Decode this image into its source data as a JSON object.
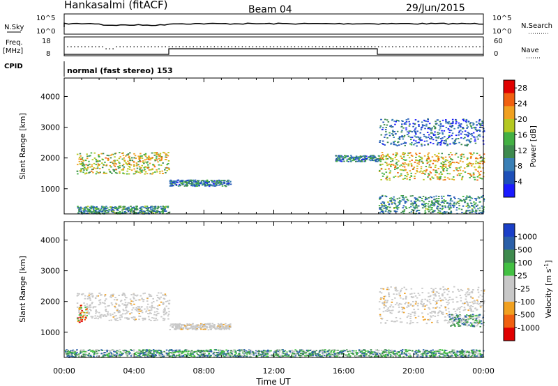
{
  "header": {
    "station": "Hankasalmi (fitACF)",
    "beam": "Beam 04",
    "date": "29/Jun/2015"
  },
  "noise_panel": {
    "left_label": "N.Sky",
    "right_label": "N.Search",
    "ticks_top": "10^5",
    "ticks_bottom": "10^0",
    "right_ticks_top": "10^5",
    "right_ticks_bottom": "10^0"
  },
  "freq_panel": {
    "left_label_1": "Freq.",
    "left_label_2": "[MHz]",
    "right_label": "Nave",
    "left_tick_top": "18",
    "left_tick_bottom": "8",
    "right_tick_top": "60",
    "right_tick_bottom": "0",
    "cpid_label": "CPID",
    "cpid_text": "normal (fast stereo) 153"
  },
  "colors": {
    "power": [
      "#1a1aff",
      "#1d4fb8",
      "#3a7fb5",
      "#3e8a4e",
      "#43b043",
      "#b4c821",
      "#f0a020",
      "#f06010",
      "#e00000"
    ],
    "velocity": [
      "#e00000",
      "#f06010",
      "#f0a020",
      "#c8c8c8",
      "#c8c8c8",
      "#43c043",
      "#3e8a4e",
      "#2a5fa8",
      "#1a3fc8"
    ]
  },
  "chart_data": [
    {
      "type": "heatmap",
      "title": "",
      "xlabel": "Time UT",
      "ylabel": "Slant Range [km]",
      "x_ticks": [
        "00:00",
        "04:00",
        "08:00",
        "12:00",
        "16:00",
        "20:00",
        "00:00"
      ],
      "x_range_hours": [
        0,
        24
      ],
      "y_ticks": [
        "1000",
        "2000",
        "3000",
        "4000"
      ],
      "ylim": [
        180,
        4600
      ],
      "colorbar": {
        "label": "Power [dB]",
        "ticks": [
          "4",
          "8",
          "12",
          "16",
          "20",
          "24",
          "28"
        ],
        "range": [
          0,
          30
        ]
      },
      "echo_regions": [
        {
          "t": [
            0.7,
            6.0
          ],
          "range": [
            1500,
            2200
          ],
          "level": 18
        },
        {
          "t": [
            0.7,
            6.0
          ],
          "range": [
            200,
            450
          ],
          "level": 10
        },
        {
          "t": [
            6.0,
            9.5
          ],
          "range": [
            1100,
            1300
          ],
          "level": 8
        },
        {
          "t": [
            15.5,
            18.0
          ],
          "range": [
            1900,
            2100
          ],
          "level": 8
        },
        {
          "t": [
            18.0,
            24.0
          ],
          "range": [
            1300,
            2200
          ],
          "level": 20
        },
        {
          "t": [
            18.0,
            24.0
          ],
          "range": [
            2400,
            3300
          ],
          "level": 6
        },
        {
          "t": [
            18.0,
            24.0
          ],
          "range": [
            200,
            800
          ],
          "level": 10
        }
      ]
    },
    {
      "type": "heatmap",
      "title": "",
      "xlabel": "Time UT",
      "ylabel": "Slant Range [km]",
      "x_ticks": [
        "00:00",
        "04:00",
        "08:00",
        "12:00",
        "16:00",
        "20:00",
        "00:00"
      ],
      "x_range_hours": [
        0,
        24
      ],
      "y_ticks": [
        "1000",
        "2000",
        "3000",
        "4000"
      ],
      "ylim": [
        180,
        4600
      ],
      "colorbar": {
        "label": "Velocity [m s^-1]",
        "label_main": "Velocity [m s",
        "label_exp": "-1",
        "label_end": "]",
        "ticks": [
          "-1000",
          "-500",
          "-100",
          "-25",
          "25",
          "100",
          "500",
          "1000"
        ]
      },
      "echo_regions": [
        {
          "t": [
            0.7,
            6.0
          ],
          "range": [
            1400,
            2300
          ],
          "level": "ground"
        },
        {
          "t": [
            0.7,
            1.3
          ],
          "range": [
            1300,
            1900
          ],
          "level": "negative"
        },
        {
          "t": [
            0,
            24
          ],
          "range": [
            200,
            450
          ],
          "level": "positive"
        },
        {
          "t": [
            6.0,
            9.5
          ],
          "range": [
            1100,
            1300
          ],
          "level": "ground"
        },
        {
          "t": [
            18.0,
            24.0
          ],
          "range": [
            1300,
            2500
          ],
          "level": "ground"
        },
        {
          "t": [
            22.0,
            24.0
          ],
          "range": [
            1200,
            1600
          ],
          "level": "positive"
        }
      ]
    }
  ]
}
